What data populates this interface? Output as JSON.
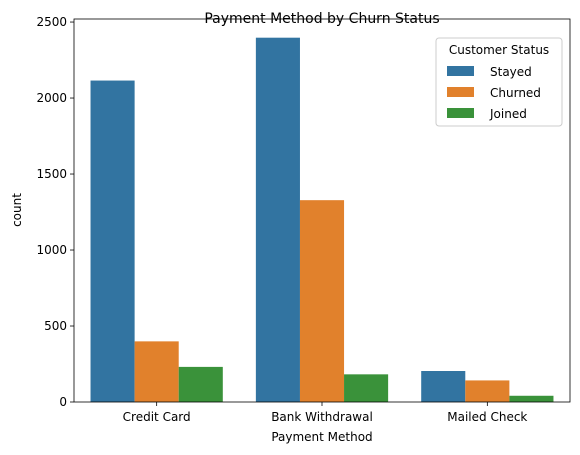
{
  "chart_data": {
    "type": "bar",
    "title": "Payment Method by Churn Status",
    "xlabel": "Payment Method",
    "ylabel": "count",
    "categories": [
      "Credit Card",
      "Bank Withdrawal",
      "Mailed Check"
    ],
    "series": [
      {
        "name": "Stayed",
        "color": "#3274a1",
        "values": [
          2115,
          2397,
          204
        ]
      },
      {
        "name": "Churned",
        "color": "#e1812c",
        "values": [
          399,
          1328,
          142
        ]
      },
      {
        "name": "Joined",
        "color": "#3a923a",
        "values": [
          231,
          182,
          41
        ]
      }
    ],
    "ylim": [
      0,
      2520
    ],
    "yticks": [
      0,
      500,
      1000,
      1500,
      2000,
      2500
    ],
    "legend": {
      "title": "Customer Status",
      "position": "top-right"
    },
    "grid": false
  }
}
